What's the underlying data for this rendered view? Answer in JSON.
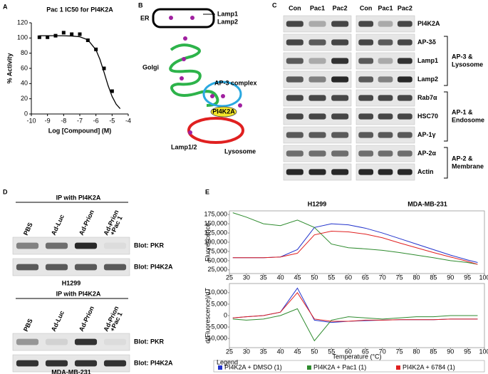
{
  "panel_letters": [
    "A",
    "B",
    "C",
    "D",
    "E"
  ],
  "chart_data": [
    {
      "type": "scatter",
      "title": "Pac 1 IC50 for PI4K2A",
      "xlabel": "Log [Compound] (M)",
      "ylabel": "% Activity",
      "color": "#000000",
      "x": [
        -9.5,
        -9,
        -8.5,
        -8,
        -7.5,
        -7,
        -6.5,
        -6,
        -5.5,
        -5
      ],
      "values": [
        101,
        101,
        103,
        107,
        105,
        105,
        97,
        85,
        60,
        30
      ],
      "fit_x": [
        -9.5,
        -9,
        -8.5,
        -8,
        -7.5,
        -7,
        -6.5,
        -6,
        -5.75,
        -5.5,
        -5.25,
        -5,
        -4.75,
        -4.5
      ],
      "fit_values": [
        103,
        103,
        103,
        102.9,
        102.6,
        101.6,
        97.6,
        84.4,
        71.7,
        55,
        37.6,
        23.1,
        13,
        7
      ],
      "xlim": [
        -10,
        -4
      ],
      "xticks": [
        -10,
        -9,
        -8,
        -7,
        -6,
        -5,
        -4
      ],
      "ylim": [
        0,
        120
      ],
      "yticks": [
        0,
        20,
        40,
        60,
        80,
        100,
        120
      ]
    },
    {
      "type": "line",
      "ylabel": "Fluorescence",
      "annotations": [
        "H1299",
        "MDA-MB-231"
      ],
      "legend_title": "Legend",
      "x": [
        26,
        30,
        35,
        40,
        45,
        50,
        55,
        60,
        65,
        70,
        75,
        80,
        85,
        90,
        95,
        98
      ],
      "series": [
        {
          "name": "PI4K2A + DMSO (1)",
          "color": "#2233cc",
          "values": [
            58000,
            58000,
            58000,
            60000,
            80000,
            140000,
            150000,
            147000,
            138000,
            125000,
            110000,
            95000,
            80000,
            65000,
            52000,
            45000
          ]
        },
        {
          "name": "PI4K2A + Pac1 (1)",
          "color": "#2e8b2e",
          "values": [
            180000,
            168000,
            150000,
            145000,
            160000,
            140000,
            95000,
            85000,
            82000,
            78000,
            72000,
            65000,
            58000,
            50000,
            45000,
            40000
          ]
        },
        {
          "name": "PI4K2A + 6784 (1)",
          "color": "#e02020",
          "values": [
            58000,
            58000,
            58000,
            60000,
            70000,
            120000,
            130000,
            128000,
            122000,
            112000,
            98000,
            85000,
            72000,
            60000,
            48000,
            40000
          ]
        }
      ],
      "xlim": [
        25,
        100
      ],
      "xticks": [
        25,
        30,
        35,
        40,
        45,
        50,
        55,
        60,
        65,
        70,
        75,
        80,
        85,
        90,
        95,
        100
      ],
      "ylim": [
        15000,
        185000
      ],
      "yticks": [
        {
          "value": 25000,
          "label": "25,000"
        },
        {
          "value": 50000,
          "label": "50,000"
        },
        {
          "value": 75000,
          "label": "75,000"
        },
        {
          "value": 100000,
          "label": "100,000"
        },
        {
          "value": 125000,
          "label": "125,000"
        },
        {
          "value": 150000,
          "label": "150,000"
        },
        {
          "value": 175000,
          "label": "175,000"
        }
      ]
    },
    {
      "type": "line",
      "ylabel": "d(Fluorescence)/dT",
      "xlabel": "Temperature (°C)",
      "x": [
        26,
        30,
        35,
        40,
        45,
        50,
        55,
        60,
        65,
        70,
        75,
        80,
        85,
        90,
        95,
        98
      ],
      "series": [
        {
          "color": "#2233cc",
          "values": [
            -1000,
            -500,
            0,
            1500,
            12000,
            -2000,
            -3000,
            -2500,
            -2200,
            -2000,
            -1800,
            -1800,
            -1800,
            -1500,
            -1500,
            -1500
          ]
        },
        {
          "color": "#2e8b2e",
          "values": [
            -1500,
            -2000,
            -1500,
            0,
            3000,
            -11000,
            -2000,
            -500,
            -1000,
            -1500,
            -1000,
            -500,
            -500,
            0,
            0,
            0
          ]
        },
        {
          "color": "#e02020",
          "values": [
            -1000,
            -500,
            0,
            1500,
            10000,
            -1500,
            -2500,
            -2500,
            -2000,
            -2000,
            -1800,
            -1800,
            -1800,
            -1500,
            -1500,
            -1500
          ]
        }
      ],
      "xlim": [
        25,
        100
      ],
      "xticks": [
        25,
        30,
        35,
        40,
        45,
        50,
        55,
        60,
        65,
        70,
        75,
        80,
        85,
        90,
        95,
        100
      ],
      "ylim": [
        -14000,
        14000
      ],
      "yticks": [
        {
          "value": -10000,
          "label": "-10,000"
        },
        {
          "value": -5000,
          "label": "-5,000"
        },
        0,
        {
          "value": 5000,
          "label": "5,000"
        },
        {
          "value": 10000,
          "label": "10,000"
        }
      ]
    }
  ],
  "diagram": {
    "er": "ER",
    "lamp_er": [
      "Lamp1",
      "Lamp2"
    ],
    "golgi": "Golgi",
    "ap3": "AP-3 complex",
    "pi4k2a": "PI4K2A",
    "lamp12": "Lamp1/2",
    "lysosome": "Lysosome"
  },
  "blots_c": {
    "lanes": [
      "Con",
      "Pac1",
      "Pac2"
    ],
    "rows": [
      "PI4K2A",
      "AP-3δ",
      "Lamp1",
      "Lamp2",
      "Rab7α",
      "HSC70",
      "AP-1γ",
      "AP-2α",
      "Actin"
    ],
    "groups": [
      [
        "AP-3 &",
        "Lysosome"
      ],
      [
        "AP-1 &",
        "Endosome"
      ],
      [
        "AP-2 &",
        "Membrane"
      ]
    ]
  },
  "blots_d": [
    {
      "header": "IP with PI4K2A",
      "lanes": [
        [
          "PBS"
        ],
        [
          "Ad-Luc"
        ],
        [
          "Ad-Prion"
        ],
        [
          "Ad-Prion",
          "+Pac 1"
        ]
      ],
      "blots": [
        "Blot: PKR",
        "Blot: PI4K2A"
      ],
      "cell_line": "H1299"
    },
    {
      "header": "IP with PI4K2A",
      "lanes": [
        [
          "PBS"
        ],
        [
          "Ad-Luc"
        ],
        [
          "Ad-Prion"
        ],
        [
          "Ad-Prion",
          "+Pac 1"
        ]
      ],
      "blots": [
        "Blot: PKR",
        "Blot: PI4K2A"
      ],
      "cell_line": "MDA-MB-231"
    }
  ]
}
